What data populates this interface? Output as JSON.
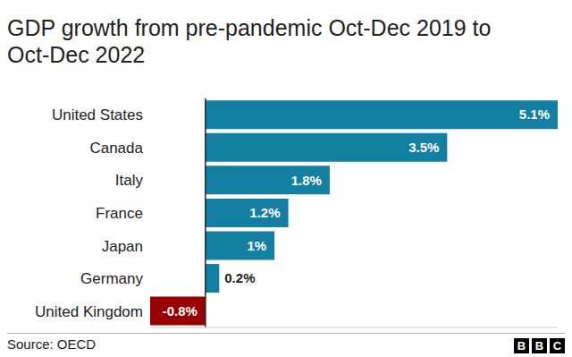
{
  "chart_data": {
    "type": "bar",
    "title": "GDP growth from pre-pandemic Oct-Dec 2019 to Oct-Dec 2022",
    "categories": [
      "United States",
      "Canada",
      "Italy",
      "France",
      "Japan",
      "Germany",
      "United Kingdom"
    ],
    "values": [
      5.1,
      3.5,
      1.8,
      1.2,
      1,
      0.2,
      -0.8
    ],
    "value_labels": [
      "5.1%",
      "3.5%",
      "1.8%",
      "1.2%",
      "1%",
      "0.2%",
      "-0.8%"
    ],
    "colors": [
      "#1380a1",
      "#1380a1",
      "#1380a1",
      "#1380a1",
      "#1380a1",
      "#1380a1",
      "#990000"
    ],
    "orientation": "horizontal",
    "xlim": [
      -0.8,
      5.1
    ],
    "xticks": [
      0
    ],
    "tick_labels": "y",
    "data_labels": true,
    "grid": false,
    "source": "Source: OECD",
    "credit": "BBC"
  }
}
